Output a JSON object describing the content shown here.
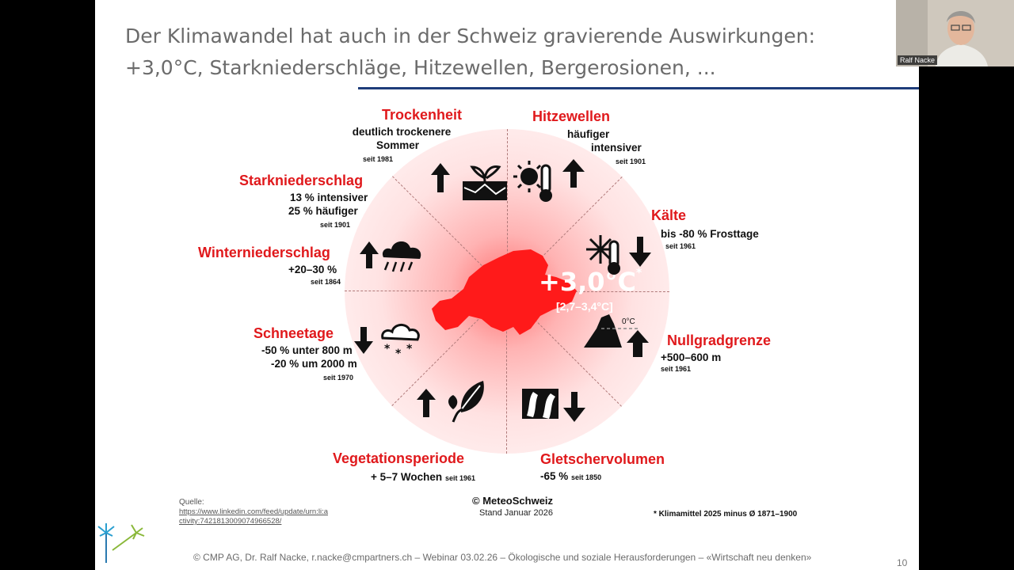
{
  "slide": {
    "title_line1": "Der Klimawandel hat auch in der Schweiz gravierende Auswirkungen:",
    "title_line2": "+3,0°C, Starkniederschläge, Hitzewellen, Bergerosionen, ..."
  },
  "infographic": {
    "center_value": "+3,0°C",
    "center_star": "*",
    "center_range": "[2,7–3,4°C]",
    "categories": [
      {
        "label": "Trockenheit",
        "lines": [
          "deutlich trockenere",
          "Sommer"
        ],
        "since": "seit 1981",
        "trend": "up"
      },
      {
        "label": "Hitzewellen",
        "lines": [
          "häufiger",
          "intensiver"
        ],
        "since": "seit 1901",
        "trend": "up"
      },
      {
        "label": "Kälte",
        "lines": [
          "bis -80 % Frosttage"
        ],
        "since": "seit 1961",
        "trend": "down"
      },
      {
        "label": "Nullgradgrenze",
        "lines": [
          "+500–600 m"
        ],
        "since": "seit 1961",
        "trend": "up",
        "icon_text": "0°C"
      },
      {
        "label": "Gletschervolumen",
        "lines": [
          "-65 %"
        ],
        "since": "seit 1850",
        "trend": "down"
      },
      {
        "label": "Vegetationsperiode",
        "lines": [
          "+ 5–7 Wochen"
        ],
        "since": "seit 1961",
        "trend": "up"
      },
      {
        "label": "Schneetage",
        "lines": [
          "-50 % unter 800 m",
          "-20 % um 2000 m"
        ],
        "since": "seit 1970",
        "trend": "down"
      },
      {
        "label": "Winterniederschlag",
        "lines": [
          "+20–30 %"
        ],
        "since": "seit 1864",
        "trend": "up"
      },
      {
        "label": "Starkniederschlag",
        "lines": [
          "13 % intensiver",
          "25 % häufiger"
        ],
        "since": "seit 1901",
        "trend": "up"
      }
    ],
    "credit": "© MeteoSchweiz",
    "stand": "Stand Januar 2026",
    "footnote": "* Klimamittel 2025 minus Ø 1871–1900",
    "colors": {
      "accent_red": "#e0191c",
      "map_red": "#ff1a1a"
    }
  },
  "source": {
    "label": "Quelle:",
    "link": "https://www.linkedin.com/feed/update/urn:li:activity:7421813009074966528/"
  },
  "footer": {
    "text": "© CMP AG, Dr. Ralf Nacke, r.nacke@cmpartners.ch – Webinar 03.02.26 – Ökologische und soziale Herausforderungen – «Wirtschaft neu denken»",
    "page_number": "10"
  },
  "webcam": {
    "participant_name": "Ralf Nacke"
  }
}
